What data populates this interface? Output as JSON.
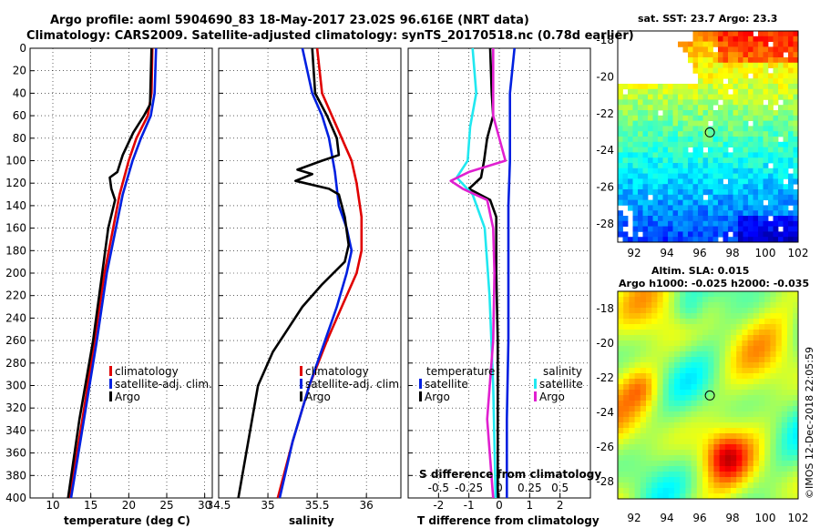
{
  "header": {
    "line1": "Argo profile: aoml 5904690_83 18-May-2017 23.02S 96.616E (NRT data)",
    "line2": "Climatology: CARS2009. Satellite-adjusted climatology: synTS_20170518.nc (0.78d earlier)"
  },
  "colors": {
    "climatology": "#e00000",
    "satellite": "#0020e0",
    "argo": "#000000",
    "sal_satellite": "#20e8f0",
    "sal_argo": "#e020d0"
  },
  "depth_ticks": [
    "0",
    "20",
    "40",
    "60",
    "80",
    "100",
    "120",
    "140",
    "160",
    "180",
    "200",
    "220",
    "240",
    "260",
    "280",
    "300",
    "320",
    "340",
    "360",
    "380",
    "400"
  ],
  "chart_data": [
    {
      "type": "line",
      "title": "",
      "xlabel": "temperature (deg C)",
      "ylabel": "depth",
      "xlim": [
        7,
        31
      ],
      "ylim": [
        0,
        400
      ],
      "x_ticks": [
        "10",
        "15",
        "20",
        "25",
        "30"
      ],
      "legend": [
        {
          "name": "climatology",
          "color": "#e00000"
        },
        {
          "name": "satellite-adj. clim.",
          "color": "#0020e0"
        },
        {
          "name": "Argo",
          "color": "#000000"
        }
      ],
      "series": [
        {
          "name": "climatology",
          "depth": [
            0,
            40,
            60,
            80,
            100,
            130,
            200,
            260,
            330,
            400
          ],
          "values": [
            23.1,
            23.0,
            22.5,
            21.0,
            20.0,
            18.8,
            16.8,
            15.5,
            13.9,
            12.2
          ]
        },
        {
          "name": "satellite-adj. clim.",
          "depth": [
            0,
            40,
            60,
            80,
            100,
            130,
            200,
            260,
            330,
            400
          ],
          "values": [
            23.6,
            23.4,
            22.9,
            21.6,
            20.5,
            19.2,
            17.1,
            15.8,
            14.1,
            12.4
          ]
        },
        {
          "name": "Argo",
          "depth": [
            0,
            50,
            60,
            75,
            95,
            110,
            115,
            125,
            135,
            160,
            200,
            260,
            330,
            400
          ],
          "values": [
            23.0,
            22.8,
            22.0,
            20.6,
            19.2,
            18.5,
            17.5,
            17.7,
            18.2,
            17.3,
            16.5,
            15.3,
            13.5,
            12.0
          ]
        }
      ]
    },
    {
      "type": "line",
      "title": "",
      "xlabel": "salinity",
      "ylabel": "depth",
      "xlim": [
        34.5,
        36.35
      ],
      "ylim": [
        0,
        400
      ],
      "x_ticks": [
        "34.5",
        "35",
        "35.5",
        "36"
      ],
      "legend": [
        {
          "name": "climatology",
          "color": "#e00000"
        },
        {
          "name": "satellite-adj. clim.",
          "color": "#0020e0"
        },
        {
          "name": "Argo",
          "color": "#000000"
        }
      ],
      "series": [
        {
          "name": "climatology",
          "depth": [
            0,
            40,
            60,
            80,
            100,
            120,
            150,
            180,
            200,
            230,
            260,
            300,
            350,
            400
          ],
          "values": [
            35.5,
            35.55,
            35.65,
            35.75,
            35.85,
            35.9,
            35.95,
            35.95,
            35.9,
            35.75,
            35.6,
            35.42,
            35.25,
            35.1
          ]
        },
        {
          "name": "satellite-adj. clim.",
          "depth": [
            0,
            40,
            60,
            80,
            110,
            140,
            160,
            180,
            200,
            230,
            260,
            300,
            350,
            400
          ],
          "values": [
            35.35,
            35.45,
            35.55,
            35.62,
            35.68,
            35.72,
            35.8,
            35.85,
            35.8,
            35.7,
            35.58,
            35.42,
            35.25,
            35.12
          ]
        },
        {
          "name": "Argo",
          "depth": [
            0,
            40,
            60,
            80,
            95,
            100,
            108,
            112,
            118,
            125,
            130,
            150,
            175,
            190,
            210,
            230,
            250,
            270,
            300,
            350,
            400
          ],
          "values": [
            35.45,
            35.48,
            35.6,
            35.7,
            35.72,
            35.55,
            35.3,
            35.45,
            35.28,
            35.62,
            35.72,
            35.78,
            35.82,
            35.78,
            35.55,
            35.35,
            35.2,
            35.05,
            34.9,
            34.8,
            34.7
          ]
        }
      ]
    },
    {
      "type": "line",
      "title": "",
      "xlabel": "T difference from climatology",
      "x2label": "S difference from climatology",
      "ylabel": "depth",
      "xlim": [
        -3,
        3
      ],
      "ylim": [
        0,
        400
      ],
      "x_ticks": [
        "-2",
        "-1",
        "0",
        "1",
        "2"
      ],
      "x2_ticks": [
        "-0.5",
        "-0.25",
        "0",
        "0.25",
        "0.5"
      ],
      "legend_title_t": "temperature",
      "legend_title_s": "salinity",
      "legend": [
        {
          "name": "satellite",
          "group": "temperature",
          "color": "#0020e0"
        },
        {
          "name": "Argo",
          "group": "temperature",
          "color": "#000000"
        },
        {
          "name": "satellite",
          "group": "salinity",
          "color": "#20e8f0"
        },
        {
          "name": "Argo",
          "group": "salinity",
          "color": "#e020d0"
        }
      ],
      "series": [
        {
          "name": "T satellite",
          "depth": [
            0,
            40,
            60,
            100,
            140,
            200,
            260,
            330,
            400
          ],
          "values": [
            0.5,
            0.35,
            0.35,
            0.35,
            0.3,
            0.3,
            0.3,
            0.25,
            0.25
          ]
        },
        {
          "name": "T Argo",
          "depth": [
            0,
            40,
            60,
            80,
            100,
            115,
            125,
            135,
            150,
            200,
            260,
            330,
            400
          ],
          "values": [
            -0.3,
            -0.25,
            -0.2,
            -0.4,
            -0.5,
            -0.6,
            -1.0,
            -0.3,
            -0.1,
            -0.1,
            -0.05,
            -0.05,
            -0.05
          ]
        },
        {
          "name": "S satellite",
          "depth": [
            0,
            40,
            70,
            100,
            115,
            130,
            160,
            220,
            300,
            400
          ],
          "values": [
            -0.22,
            -0.19,
            -0.24,
            -0.26,
            -0.35,
            -0.22,
            -0.12,
            -0.08,
            -0.05,
            -0.03
          ]
        },
        {
          "name": "S Argo",
          "depth": [
            0,
            60,
            80,
            100,
            110,
            118,
            125,
            135,
            160,
            200,
            260,
            330,
            400
          ],
          "values": [
            -0.05,
            -0.05,
            0.0,
            0.05,
            -0.25,
            -0.4,
            -0.3,
            -0.1,
            -0.05,
            -0.04,
            -0.05,
            -0.1,
            -0.05
          ]
        }
      ]
    },
    {
      "type": "heatmap",
      "title": "sat. SST: 23.7 Argo: 23.3",
      "x_ticks": [
        "92",
        "94",
        "96",
        "98",
        "100",
        "102"
      ],
      "y_ticks": [
        "-18",
        "-20",
        "-22",
        "-24",
        "-26",
        "-28"
      ],
      "xlim": [
        91,
        102
      ],
      "ylim": [
        -29,
        -17.5
      ],
      "marker": {
        "lon": 96.616,
        "lat": -23.02
      }
    },
    {
      "type": "heatmap",
      "title": "Altim. SLA: 0.015",
      "subtitle": "Argo h1000: -0.025 h2000: -0.035",
      "x_ticks": [
        "92",
        "94",
        "96",
        "98",
        "100",
        "102"
      ],
      "y_ticks": [
        "-18",
        "-20",
        "-22",
        "-24",
        "-26",
        "-28"
      ],
      "xlim": [
        91,
        102
      ],
      "ylim": [
        -29,
        -17
      ],
      "marker": {
        "lon": 96.616,
        "lat": -23.02
      }
    }
  ],
  "stamp": "©IMOS 12-Dec-2018 22:05:59"
}
